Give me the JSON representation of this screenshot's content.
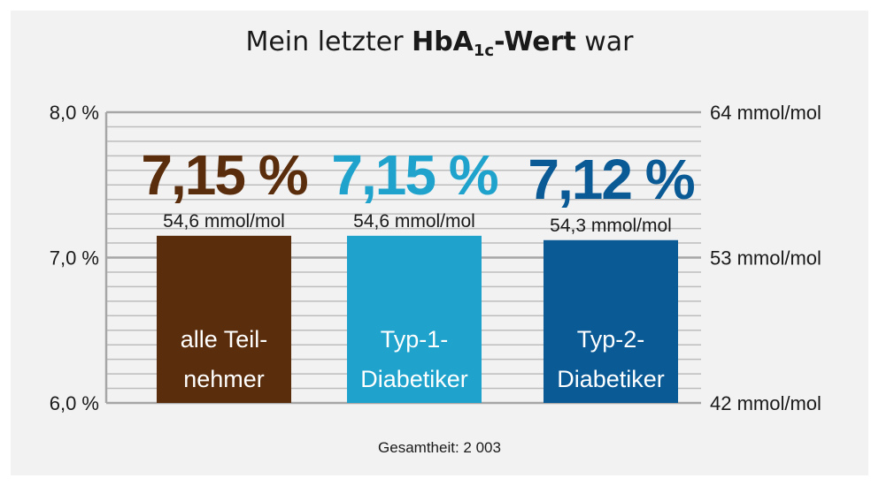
{
  "title": {
    "prefix": "Mein letzter ",
    "bold_main": "HbA",
    "bold_sub": "1c",
    "bold_suffix": "-Wert",
    "suffix": " war"
  },
  "footnote": "Gesamtheit: 2 003",
  "colors": {
    "background": "#f2f2f2",
    "gridline": "#b3b3b3",
    "text": "#1a1a1a"
  },
  "chart_data": {
    "type": "bar",
    "categories": [
      "alle Teil-\nnehmer",
      "Typ-1-\nDiabetiker",
      "Typ-2-\nDiabetiker"
    ],
    "values": [
      7.15,
      7.15,
      7.12
    ],
    "value_labels": [
      "7,15 %",
      "7,15 %",
      "7,12 %"
    ],
    "mmol_labels": [
      "54,6 mmol/mol",
      "54,6 mmol/mol",
      "54,3 mmol/mol"
    ],
    "bar_colors": [
      "#5a2d0c",
      "#1fa3cc",
      "#0a5a96"
    ],
    "ylim": [
      6.0,
      8.0
    ],
    "left_ticks": [
      {
        "value": 6.0,
        "label": "6,0 %"
      },
      {
        "value": 7.0,
        "label": "7,0 %"
      },
      {
        "value": 8.0,
        "label": "8,0 %"
      }
    ],
    "right_ticks": [
      {
        "value": 6.0,
        "label": "42 mmol/mol"
      },
      {
        "value": 7.0,
        "label": "53 mmol/mol"
      },
      {
        "value": 8.0,
        "label": "64 mmol/mol"
      }
    ],
    "grid": true,
    "grid_step": 0.1
  }
}
